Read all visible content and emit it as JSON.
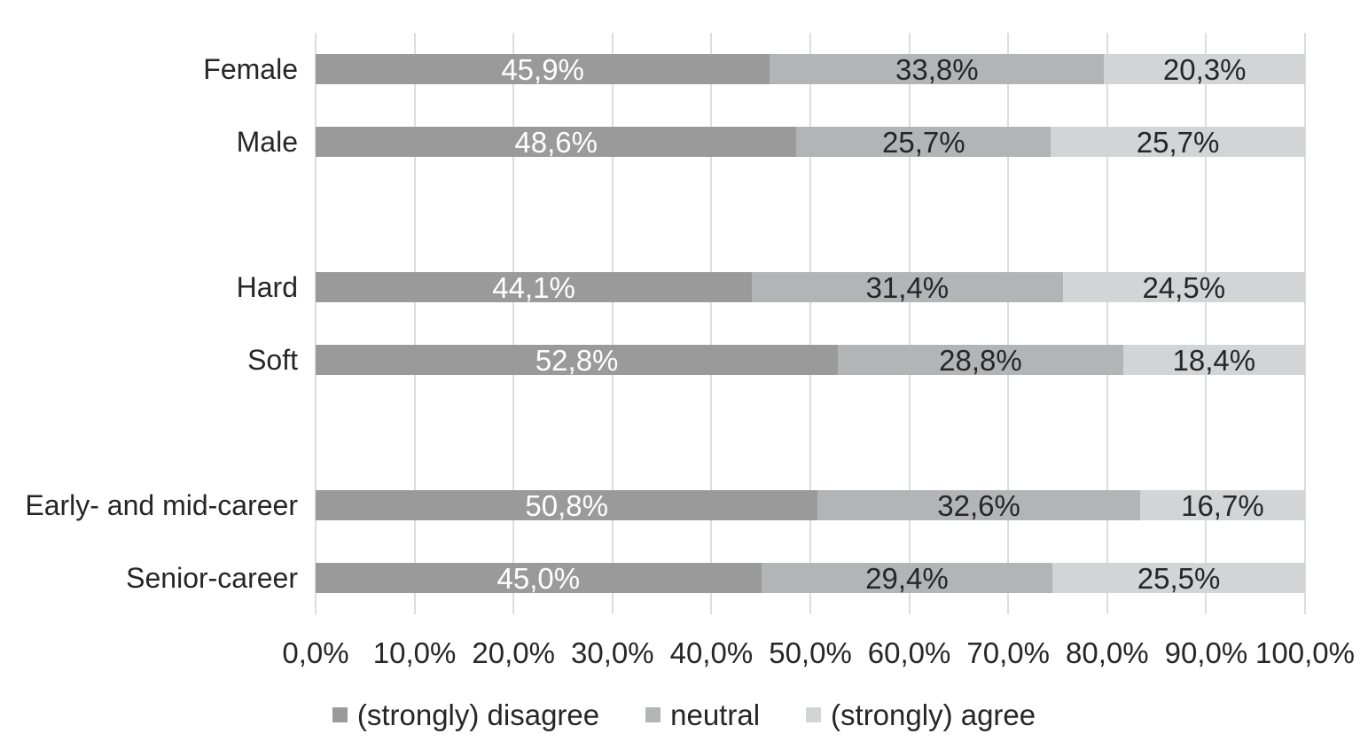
{
  "chart_data": {
    "type": "bar",
    "orientation": "horizontal",
    "stacked": true,
    "title": "",
    "xlabel": "",
    "ylabel": "",
    "xlim": [
      0,
      100
    ],
    "grid": true,
    "gridline_color": "#dcdde0",
    "background_color": "#ffffff",
    "axis_text_color": "#262626",
    "legend_position": "bottom",
    "categories": [
      "Female",
      "Male",
      "Hard",
      "Soft",
      "Early- and mid-career",
      "Senior-career"
    ],
    "category_slots": [
      0,
      1,
      3,
      4,
      6,
      7
    ],
    "slot_count": 8,
    "series": [
      {
        "name": "(strongly) disagree",
        "color": "#9a9a9a",
        "label_color": "#ffffff",
        "values": [
          45.9,
          48.6,
          44.1,
          52.8,
          50.8,
          45.0
        ],
        "labels": [
          "45,9%",
          "48,6%",
          "44,1%",
          "52,8%",
          "50,8%",
          "45,0%"
        ]
      },
      {
        "name": "neutral",
        "color": "#b3b4b6",
        "label_color": "#262626",
        "values": [
          33.8,
          25.7,
          31.4,
          28.8,
          32.6,
          29.4
        ],
        "labels": [
          "33,8%",
          "25,7%",
          "31,4%",
          "28,8%",
          "32,6%",
          "29,4%"
        ]
      },
      {
        "name": "(strongly) agree",
        "color": "#d3d4d6",
        "label_color": "#262626",
        "values": [
          20.3,
          25.7,
          24.5,
          18.4,
          16.7,
          25.5
        ],
        "labels": [
          "20,3%",
          "25,7%",
          "24,5%",
          "18,4%",
          "16,7%",
          "25,5%"
        ]
      }
    ],
    "x_ticks": [
      "0,0%",
      "10,0%",
      "20,0%",
      "30,0%",
      "40,0%",
      "50,0%",
      "60,0%",
      "70,0%",
      "80,0%",
      "90,0%",
      "100,0%"
    ]
  }
}
